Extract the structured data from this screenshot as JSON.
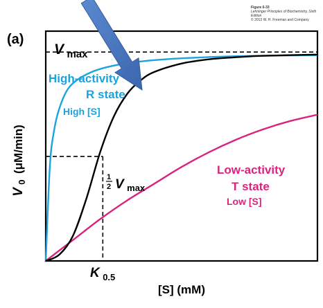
{
  "credit": {
    "figure": "Figure 6-33",
    "book": "Lehninger Principles of Biochemistry, Sixth Edition",
    "copyright": "© 2013 W. H. Freeman and Company"
  },
  "colors": {
    "high": "#1aa3dc",
    "low": "#d9247e",
    "sigmoid": "#000000",
    "arrow": "#4a79c4"
  },
  "chart_data": {
    "type": "line",
    "panel_label": "(a)",
    "xlabel": "[S] (mM)",
    "ylabel_main": "V",
    "ylabel_sub": "0",
    "ylabel_unit": "(μM/min)",
    "xlim": [
      0,
      10
    ],
    "ylim": [
      0,
      1.1
    ],
    "vmax": 1.0,
    "k05": 2.1,
    "vmax_label_main": "V",
    "vmax_label_sub": "max",
    "half_label_num": "1",
    "half_label_den": "2",
    "k05_label_main": "K",
    "k05_label_sub": "0.5",
    "series": [
      {
        "name": "High-activity R state",
        "sublabel": "High [S]",
        "line1": "High-activity",
        "line2": "R state",
        "x": [
          0,
          0.15,
          0.3,
          0.5,
          0.8,
          1.2,
          1.8,
          2.5,
          3.5,
          5,
          7,
          10
        ],
        "y": [
          0,
          0.45,
          0.62,
          0.73,
          0.82,
          0.87,
          0.91,
          0.935,
          0.955,
          0.97,
          0.98,
          0.985
        ]
      },
      {
        "name": "Sigmoid",
        "sublabel": "",
        "x": [
          0,
          0.5,
          1.0,
          1.5,
          2.0,
          2.5,
          3.0,
          3.5,
          4,
          5,
          6,
          7,
          8,
          10
        ],
        "y": [
          0,
          0.03,
          0.12,
          0.3,
          0.52,
          0.69,
          0.8,
          0.865,
          0.905,
          0.945,
          0.965,
          0.975,
          0.982,
          0.988
        ]
      },
      {
        "name": "Low-activity T state",
        "sublabel": "Low [S]",
        "line1": "Low-activity",
        "line2": "T state",
        "x": [
          0,
          1,
          2,
          3,
          4,
          5,
          6,
          7,
          8,
          9,
          10
        ],
        "y": [
          0,
          0.1,
          0.2,
          0.29,
          0.37,
          0.45,
          0.52,
          0.58,
          0.63,
          0.67,
          0.7
        ]
      }
    ],
    "grid": false,
    "legend": "none"
  }
}
